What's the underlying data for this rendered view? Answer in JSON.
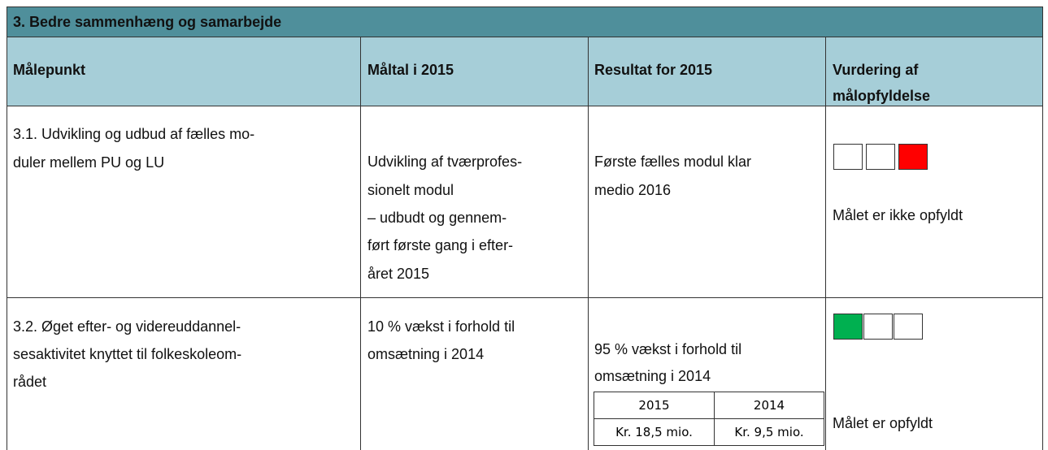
{
  "title": "3. Bedre sammenhæng og samarbejde",
  "header": [
    "Målepunkt",
    "Måltal i 2015",
    "Resultat for 2015",
    [
      "Vurdering af",
      "målopfyldelse"
    ]
  ],
  "rows": [
    {
      "measure": [
        "3.1. Udvikling og udbud af fælles mo-",
        "duler mellem PU og LU"
      ],
      "target": [
        "Udvikling af tværprofes-",
        "sionelt modul",
        "– udbudt og gennem-",
        "ført første gang i efter-",
        "året 2015"
      ],
      "result": [
        "Første fælles modul klar",
        "medio 2016"
      ],
      "assessment": "Målet er ikke opfyldt"
    },
    {
      "measure": [
        "3.2. Øget efter- og videreuddannel-",
        "sesaktivitet knyttet til folkeskoleom-",
        "rådet"
      ],
      "target": [
        "10 % vækst i forhold til",
        "omsætning i 2014"
      ],
      "result": [
        "95 % vækst i forhold til",
        "omsætning i 2014"
      ],
      "result_table": [
        [
          "2015",
          "2014"
        ],
        [
          "Kr. 18,5 mio.",
          "Kr. 9,5 mio."
        ]
      ],
      "assessment": "Målet er opfyldt"
    }
  ]
}
